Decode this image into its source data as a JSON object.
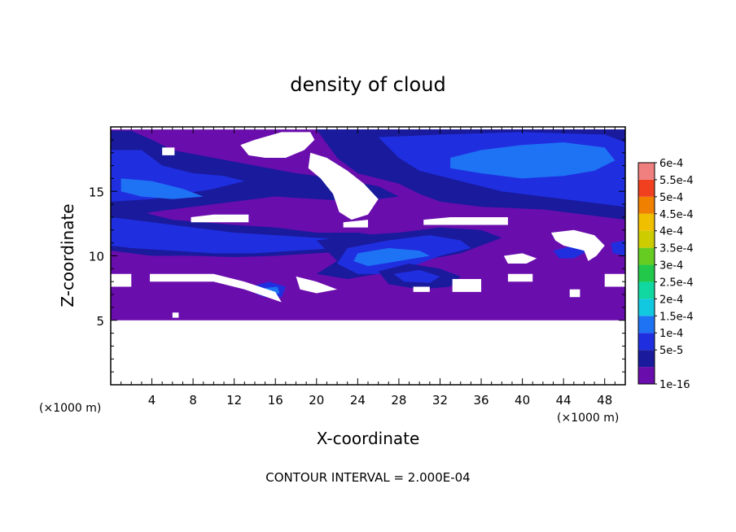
{
  "chart_data": {
    "type": "heatmap",
    "title": "density of cloud",
    "xlabel": "X-coordinate",
    "ylabel": "Z-coordinate",
    "x_unit": "(×1000 m)",
    "y_unit": "(×1000 m)",
    "xlim": [
      0,
      50
    ],
    "ylim": [
      0,
      20
    ],
    "x_ticks": [
      4,
      8,
      12,
      16,
      20,
      24,
      28,
      32,
      36,
      40,
      44,
      48
    ],
    "y_ticks": [
      5,
      10,
      15
    ],
    "footer": "CONTOUR INTERVAL = 2.000E-04",
    "data_region_z": [
      5,
      19.8
    ],
    "colorbar": {
      "labels": [
        "1e-16",
        "5e-5",
        "1e-4",
        "1.5e-4",
        "2e-4",
        "2.5e-4",
        "3e-4",
        "3.5e-4",
        "4e-4",
        "4.5e-4",
        "5e-4",
        "5.5e-4",
        "6e-4"
      ],
      "colors": [
        "#6a0dad",
        "#1a1a9c",
        "#1f2fe0",
        "#1e73f5",
        "#12c8e0",
        "#10d8a0",
        "#22c84a",
        "#66cc22",
        "#cccc00",
        "#f0c000",
        "#f08000",
        "#f04020",
        "#f08080"
      ]
    },
    "regions": [
      {
        "name": "upper-left-band",
        "level": "5e-5",
        "points": [
          [
            0,
            19.7
          ],
          [
            2,
            19.7
          ],
          [
            4,
            19
          ],
          [
            6,
            18.2
          ],
          [
            10,
            17.6
          ],
          [
            14,
            17
          ],
          [
            18,
            16.4
          ],
          [
            22,
            16
          ],
          [
            26,
            15.4
          ],
          [
            28,
            14.6
          ],
          [
            24,
            14.2
          ],
          [
            20,
            14.4
          ],
          [
            16,
            14.6
          ],
          [
            12,
            14.2
          ],
          [
            8,
            13.8
          ],
          [
            4,
            13.4
          ],
          [
            0,
            12.6
          ]
        ]
      },
      {
        "name": "upper-left-core",
        "level": "1e-4",
        "points": [
          [
            0,
            18.2
          ],
          [
            3,
            18.2
          ],
          [
            5,
            17
          ],
          [
            8,
            16.4
          ],
          [
            11,
            16.2
          ],
          [
            13,
            15.8
          ],
          [
            10,
            15.2
          ],
          [
            7,
            14.8
          ],
          [
            4,
            14.4
          ],
          [
            0,
            14.2
          ]
        ]
      },
      {
        "name": "upper-left-high",
        "level": "1.5e-4",
        "points": [
          [
            1,
            16
          ],
          [
            4,
            15.8
          ],
          [
            7,
            15.2
          ],
          [
            9,
            14.6
          ],
          [
            6,
            14.4
          ],
          [
            3,
            14.6
          ],
          [
            1,
            15
          ]
        ]
      },
      {
        "name": "upper-right-band",
        "level": "5e-5",
        "points": [
          [
            20,
            19.8
          ],
          [
            50,
            19.8
          ],
          [
            50,
            12.8
          ],
          [
            46,
            13.2
          ],
          [
            42,
            13.6
          ],
          [
            36,
            13.8
          ],
          [
            32,
            14.2
          ],
          [
            30,
            14.8
          ],
          [
            28,
            15.6
          ],
          [
            24,
            16.4
          ],
          [
            22,
            17.6
          ]
        ]
      },
      {
        "name": "upper-right-core",
        "level": "1e-4",
        "points": [
          [
            26,
            19.2
          ],
          [
            32,
            19.4
          ],
          [
            40,
            19.6
          ],
          [
            48,
            19.4
          ],
          [
            50,
            18.8
          ],
          [
            50,
            13.8
          ],
          [
            46,
            14.2
          ],
          [
            42,
            14.6
          ],
          [
            38,
            15
          ],
          [
            34,
            15.8
          ],
          [
            30,
            16.6
          ],
          [
            28,
            17.6
          ]
        ]
      },
      {
        "name": "upper-right-high",
        "level": "1.5e-4",
        "points": [
          [
            33,
            17.6
          ],
          [
            36,
            18.2
          ],
          [
            40,
            18.6
          ],
          [
            44,
            18.8
          ],
          [
            48,
            18.4
          ],
          [
            49,
            17.4
          ],
          [
            47,
            16.6
          ],
          [
            44,
            16.2
          ],
          [
            40,
            16
          ],
          [
            36,
            16.4
          ],
          [
            33,
            16.8
          ]
        ]
      },
      {
        "name": "mid-left-band",
        "level": "5e-5",
        "points": [
          [
            0,
            13.6
          ],
          [
            3,
            13.4
          ],
          [
            6,
            12.8
          ],
          [
            9,
            12.6
          ],
          [
            12,
            12.4
          ],
          [
            16,
            12.2
          ],
          [
            20,
            11.8
          ],
          [
            24,
            11.8
          ],
          [
            28,
            11.4
          ],
          [
            31,
            11
          ],
          [
            28,
            10.6
          ],
          [
            24,
            10.4
          ],
          [
            20,
            10.2
          ],
          [
            16,
            10
          ],
          [
            12,
            9.9
          ],
          [
            8,
            10
          ],
          [
            4,
            10
          ],
          [
            0,
            10.4
          ]
        ]
      },
      {
        "name": "mid-left-core",
        "level": "1e-4",
        "points": [
          [
            0,
            13
          ],
          [
            4,
            12.6
          ],
          [
            8,
            12.2
          ],
          [
            12,
            11.8
          ],
          [
            16,
            11.6
          ],
          [
            20,
            11.4
          ],
          [
            24,
            11.2
          ],
          [
            22,
            10.6
          ],
          [
            18,
            10.4
          ],
          [
            14,
            10.2
          ],
          [
            10,
            10.2
          ],
          [
            6,
            10.4
          ],
          [
            2,
            10.6
          ],
          [
            0,
            10.8
          ]
        ]
      },
      {
        "name": "mid-right-band",
        "level": "5e-5",
        "points": [
          [
            20,
            11.2
          ],
          [
            24,
            11.6
          ],
          [
            28,
            11.8
          ],
          [
            32,
            12.2
          ],
          [
            36,
            12
          ],
          [
            38,
            11.4
          ],
          [
            36,
            10.8
          ],
          [
            34,
            10.2
          ],
          [
            30,
            9.6
          ],
          [
            26,
            8.6
          ],
          [
            23,
            8.2
          ],
          [
            20,
            8.6
          ],
          [
            22,
            9.6
          ]
        ]
      },
      {
        "name": "mid-right-core",
        "level": "1e-4",
        "points": [
          [
            23,
            10.6
          ],
          [
            27,
            11.2
          ],
          [
            31,
            11.6
          ],
          [
            34,
            11.2
          ],
          [
            35,
            10.6
          ],
          [
            32,
            10
          ],
          [
            30,
            9.4
          ],
          [
            27,
            8.6
          ],
          [
            24,
            8.6
          ],
          [
            22,
            9.4
          ]
        ]
      },
      {
        "name": "mid-right-high",
        "level": "1.5e-4",
        "points": [
          [
            24,
            10.2
          ],
          [
            27,
            10.6
          ],
          [
            30,
            10.4
          ],
          [
            31,
            10
          ],
          [
            28,
            9.6
          ],
          [
            25,
            9.2
          ],
          [
            23.6,
            9.6
          ]
        ]
      },
      {
        "name": "lower-blob",
        "level": "5e-5",
        "points": [
          [
            26,
            8.8
          ],
          [
            29,
            9.4
          ],
          [
            32,
            9
          ],
          [
            34,
            8.4
          ],
          [
            33,
            7.6
          ],
          [
            30,
            7.4
          ],
          [
            27,
            7.8
          ]
        ]
      },
      {
        "name": "lower-blob-core",
        "level": "1e-4",
        "points": [
          [
            27.5,
            8.6
          ],
          [
            30,
            8.9
          ],
          [
            32,
            8.4
          ],
          [
            31,
            7.9
          ],
          [
            28.5,
            8
          ]
        ]
      },
      {
        "name": "small-blob-left",
        "level": "1e-4",
        "points": [
          [
            13.6,
            7.6
          ],
          [
            15.4,
            8
          ],
          [
            17,
            7.6
          ],
          [
            16.6,
            6.8
          ],
          [
            15,
            6.8
          ],
          [
            14,
            7.1
          ]
        ]
      },
      {
        "name": "small-blob-left-h",
        "level": "1.5e-4",
        "points": [
          [
            15,
            7.5
          ],
          [
            16.2,
            7.6
          ],
          [
            16.4,
            7.1
          ],
          [
            15.4,
            7
          ]
        ]
      },
      {
        "name": "right-edge-blob",
        "level": "1e-4",
        "points": [
          [
            43,
            10.4
          ],
          [
            45,
            10.8
          ],
          [
            46.4,
            10.4
          ],
          [
            45,
            9.8
          ],
          [
            43.6,
            9.8
          ]
        ]
      },
      {
        "name": "far-right-blob",
        "level": "1e-4",
        "points": [
          [
            48.6,
            11
          ],
          [
            50,
            11.2
          ],
          [
            50,
            10
          ],
          [
            48.8,
            10.2
          ]
        ]
      }
    ],
    "cloud_free_holes": [
      {
        "name": "clear-1",
        "points": [
          [
            12.6,
            18.6
          ],
          [
            14,
            19
          ],
          [
            16.6,
            19.6
          ],
          [
            19.4,
            19.6
          ],
          [
            19.8,
            19
          ],
          [
            18.8,
            18.2
          ],
          [
            17,
            17.6
          ],
          [
            15,
            17.6
          ],
          [
            13.4,
            17.8
          ]
        ]
      },
      {
        "name": "clear-2",
        "points": [
          [
            19.4,
            18
          ],
          [
            21,
            17.6
          ],
          [
            23,
            16.6
          ],
          [
            24.6,
            15.6
          ],
          [
            26,
            14.4
          ],
          [
            25,
            13.2
          ],
          [
            23.4,
            12.8
          ],
          [
            22.2,
            13.4
          ],
          [
            21.6,
            14.8
          ],
          [
            20.4,
            16
          ],
          [
            19.2,
            16.8
          ]
        ]
      },
      {
        "name": "clear-3",
        "points": [
          [
            5,
            18.4
          ],
          [
            6.2,
            18.4
          ],
          [
            6.2,
            17.8
          ],
          [
            5,
            17.8
          ]
        ]
      },
      {
        "name": "clear-4",
        "points": [
          [
            7.8,
            13
          ],
          [
            10,
            13.2
          ],
          [
            13.4,
            13.2
          ],
          [
            13.4,
            12.6
          ],
          [
            7.8,
            12.6
          ]
        ]
      },
      {
        "name": "clear-5",
        "points": [
          [
            22.6,
            12.6
          ],
          [
            25,
            12.8
          ],
          [
            25,
            12.2
          ],
          [
            22.6,
            12.2
          ]
        ]
      },
      {
        "name": "clear-6",
        "points": [
          [
            30.4,
            12.8
          ],
          [
            33,
            13
          ],
          [
            38.6,
            13
          ],
          [
            38.6,
            12.4
          ],
          [
            30.4,
            12.4
          ]
        ]
      },
      {
        "name": "clear-7",
        "points": [
          [
            42.8,
            11.8
          ],
          [
            45,
            12
          ],
          [
            47,
            11.6
          ],
          [
            48,
            10.8
          ],
          [
            47.2,
            10
          ],
          [
            46.4,
            9.6
          ],
          [
            46,
            10.4
          ],
          [
            44,
            10.8
          ],
          [
            43.2,
            11.2
          ]
        ]
      },
      {
        "name": "clear-8",
        "points": [
          [
            38.2,
            10
          ],
          [
            40,
            10.2
          ],
          [
            41.4,
            9.8
          ],
          [
            40.4,
            9.4
          ],
          [
            38.6,
            9.4
          ]
        ]
      },
      {
        "name": "clear-9",
        "points": [
          [
            0,
            8.6
          ],
          [
            2,
            8.6
          ],
          [
            2,
            7.6
          ],
          [
            0,
            7.6
          ]
        ]
      },
      {
        "name": "clear-10",
        "points": [
          [
            3.8,
            8.6
          ],
          [
            10,
            8.6
          ],
          [
            13,
            8
          ],
          [
            16,
            7.2
          ],
          [
            16.6,
            6.4
          ],
          [
            13,
            7.4
          ],
          [
            10,
            8
          ],
          [
            3.8,
            8
          ]
        ]
      },
      {
        "name": "clear-11",
        "points": [
          [
            18,
            8.4
          ],
          [
            20,
            8
          ],
          [
            22,
            7.4
          ],
          [
            20,
            7.1
          ],
          [
            18.4,
            7.4
          ]
        ]
      },
      {
        "name": "clear-12",
        "points": [
          [
            29.4,
            7.6
          ],
          [
            31,
            7.6
          ],
          [
            31,
            7.2
          ],
          [
            29.4,
            7.2
          ]
        ]
      },
      {
        "name": "clear-13",
        "points": [
          [
            33.2,
            8.2
          ],
          [
            36,
            8.2
          ],
          [
            36,
            7.2
          ],
          [
            33.2,
            7.2
          ]
        ]
      },
      {
        "name": "clear-14",
        "points": [
          [
            38.6,
            8.6
          ],
          [
            41,
            8.6
          ],
          [
            41,
            8
          ],
          [
            38.6,
            8
          ]
        ]
      },
      {
        "name": "clear-15",
        "points": [
          [
            48,
            8.6
          ],
          [
            50,
            8.6
          ],
          [
            50,
            7.6
          ],
          [
            48,
            7.6
          ]
        ]
      },
      {
        "name": "clear-16",
        "points": [
          [
            44.6,
            7.4
          ],
          [
            45.6,
            7.4
          ],
          [
            45.6,
            6.8
          ],
          [
            44.6,
            6.8
          ]
        ]
      },
      {
        "name": "clear-17",
        "points": [
          [
            6,
            5.6
          ],
          [
            6.6,
            5.6
          ],
          [
            6.6,
            5.2
          ],
          [
            6,
            5.2
          ]
        ]
      }
    ]
  }
}
